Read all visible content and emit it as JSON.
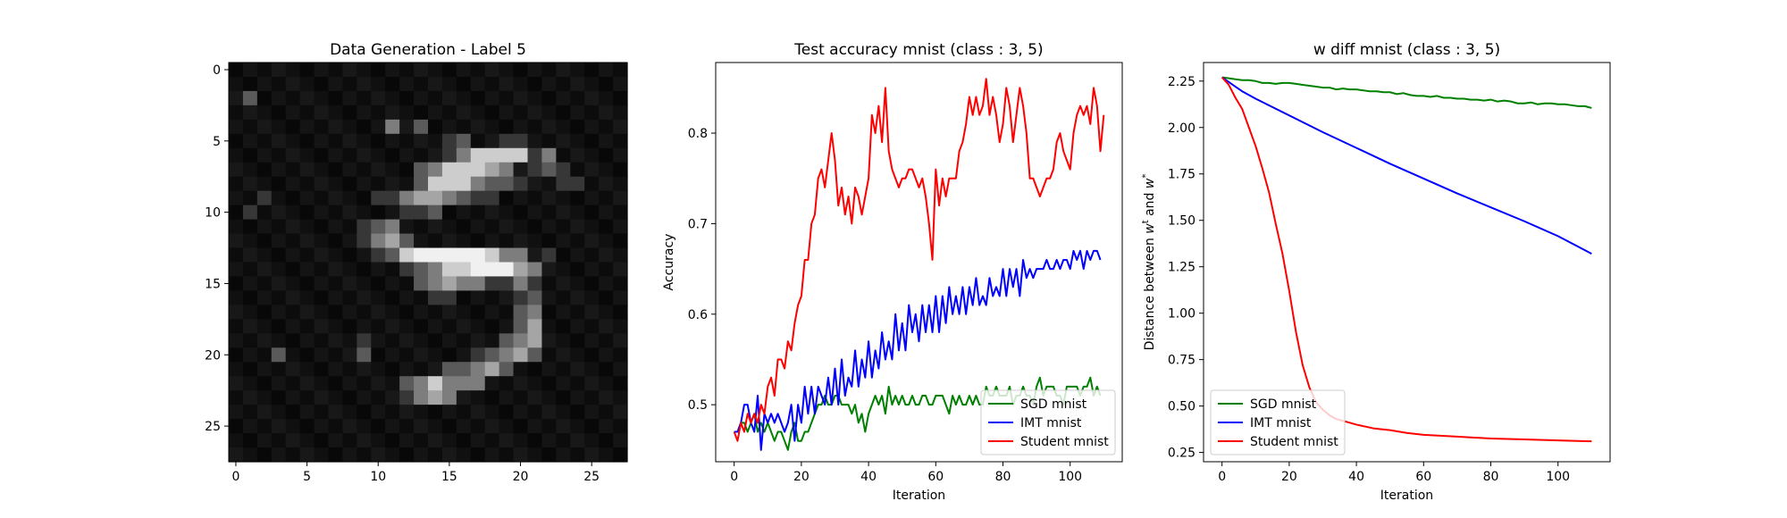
{
  "chart_data": [
    {
      "type": "heatmap",
      "title": "Data Generation - Label 5",
      "colormap": "gray",
      "xlim": [
        -0.5,
        27.5
      ],
      "ylim": [
        27.5,
        -0.5
      ],
      "xticks": [
        0,
        5,
        10,
        15,
        20,
        25
      ],
      "yticks": [
        0,
        5,
        10,
        15,
        20,
        25
      ],
      "grid": false,
      "rows": [
        "0000000000000000000000000000",
        "0000000000000000000000000000",
        "0200000000000000000000000000",
        "0000000000000000000000000000",
        "0000000000030200000000000000",
        "0000000000000001200110000000",
        "0000000000000001355551300000",
        "0000000000000235554301210000",
        "0000000000000255532210011000",
        "0010000000113443211000000000",
        "0100000000001120000000000000",
        "0000000001230000000000000000",
        "0000000001342000000000000000",
        "0000000000125666765330100000",
        "0000000000001235566643000000",
        "0000000000000234331131000000",
        "0000000000000011000012000000",
        "0000000000000000000023000000",
        "0000000000000000000024000000",
        "0000000001000000000234000000",
        "0002000002000000012342000000",
        "0000000000000002234200000000",
        "0000000000002353330000000000",
        "0000000000001343000000000000",
        "0000000000000000000000000000",
        "0000000000000000000000000000",
        "0000000000000000000000000000",
        "0000000000000000000000000000"
      ]
    },
    {
      "type": "line",
      "title": "Test accuracy mnist (class : 3, 5)",
      "xlabel": "Iteration",
      "ylabel": "Accuracy",
      "xlim": [
        -5.5,
        115.5
      ],
      "ylim": [
        0.437,
        0.878
      ],
      "xticks": [
        0,
        20,
        40,
        60,
        80,
        100
      ],
      "yticks": [
        0.5,
        0.6,
        0.7,
        0.8
      ],
      "legend_position": "lower-right",
      "grid": false,
      "series": [
        {
          "name": "SGD mnist",
          "color": "#008000",
          "x_start": 0,
          "values": [
            0.47,
            0.47,
            0.48,
            0.48,
            0.47,
            0.48,
            0.49,
            0.47,
            0.48,
            0.47,
            0.48,
            0.47,
            0.46,
            0.47,
            0.47,
            0.46,
            0.45,
            0.47,
            0.48,
            0.46,
            0.46,
            0.47,
            0.47,
            0.48,
            0.49,
            0.5,
            0.5,
            0.51,
            0.5,
            0.5,
            0.51,
            0.51,
            0.5,
            0.5,
            0.5,
            0.49,
            0.5,
            0.48,
            0.49,
            0.47,
            0.49,
            0.5,
            0.51,
            0.5,
            0.51,
            0.49,
            0.52,
            0.5,
            0.51,
            0.5,
            0.51,
            0.5,
            0.5,
            0.51,
            0.5,
            0.5,
            0.51,
            0.51,
            0.5,
            0.5,
            0.51,
            0.51,
            0.51,
            0.5,
            0.49,
            0.51,
            0.5,
            0.51,
            0.5,
            0.5,
            0.51,
            0.5,
            0.51,
            0.5,
            0.5,
            0.52,
            0.51,
            0.51,
            0.52,
            0.51,
            0.51,
            0.51,
            0.52,
            0.5,
            0.51,
            0.51,
            0.52,
            0.51,
            0.51,
            0.5,
            0.52,
            0.53,
            0.51,
            0.52,
            0.52,
            0.52,
            0.51,
            0.51,
            0.5,
            0.52,
            0.52,
            0.52,
            0.52,
            0.51,
            0.52,
            0.52,
            0.53,
            0.51,
            0.52,
            0.51
          ]
        },
        {
          "name": "IMT mnist",
          "color": "#0000ff",
          "x_start": 0,
          "values": [
            0.47,
            0.47,
            0.48,
            0.5,
            0.5,
            0.48,
            0.47,
            0.51,
            0.45,
            0.49,
            0.48,
            0.49,
            0.48,
            0.49,
            0.48,
            0.47,
            0.48,
            0.5,
            0.46,
            0.5,
            0.48,
            0.52,
            0.49,
            0.52,
            0.49,
            0.52,
            0.51,
            0.5,
            0.53,
            0.5,
            0.54,
            0.5,
            0.55,
            0.51,
            0.53,
            0.52,
            0.56,
            0.52,
            0.55,
            0.53,
            0.57,
            0.53,
            0.56,
            0.54,
            0.58,
            0.55,
            0.57,
            0.55,
            0.6,
            0.56,
            0.59,
            0.56,
            0.61,
            0.58,
            0.6,
            0.57,
            0.61,
            0.58,
            0.61,
            0.58,
            0.62,
            0.58,
            0.62,
            0.59,
            0.63,
            0.6,
            0.62,
            0.6,
            0.63,
            0.6,
            0.63,
            0.61,
            0.64,
            0.61,
            0.62,
            0.61,
            0.64,
            0.62,
            0.63,
            0.62,
            0.65,
            0.62,
            0.65,
            0.63,
            0.65,
            0.62,
            0.66,
            0.64,
            0.65,
            0.64,
            0.65,
            0.65,
            0.65,
            0.66,
            0.65,
            0.65,
            0.66,
            0.65,
            0.66,
            0.66,
            0.65,
            0.67,
            0.66,
            0.67,
            0.65,
            0.67,
            0.66,
            0.67,
            0.67,
            0.66
          ]
        },
        {
          "name": "Student mnist",
          "color": "#ff0000",
          "x_start": 0,
          "values": [
            0.47,
            0.46,
            0.48,
            0.47,
            0.49,
            0.48,
            0.49,
            0.48,
            0.5,
            0.49,
            0.52,
            0.53,
            0.51,
            0.55,
            0.55,
            0.54,
            0.57,
            0.56,
            0.59,
            0.61,
            0.62,
            0.66,
            0.66,
            0.7,
            0.71,
            0.75,
            0.76,
            0.74,
            0.77,
            0.8,
            0.77,
            0.72,
            0.74,
            0.71,
            0.73,
            0.7,
            0.74,
            0.73,
            0.71,
            0.73,
            0.75,
            0.82,
            0.8,
            0.83,
            0.79,
            0.85,
            0.78,
            0.76,
            0.75,
            0.74,
            0.75,
            0.75,
            0.76,
            0.76,
            0.75,
            0.74,
            0.75,
            0.73,
            0.7,
            0.66,
            0.76,
            0.72,
            0.75,
            0.73,
            0.75,
            0.75,
            0.75,
            0.78,
            0.79,
            0.81,
            0.84,
            0.82,
            0.84,
            0.82,
            0.83,
            0.86,
            0.82,
            0.84,
            0.82,
            0.79,
            0.81,
            0.85,
            0.83,
            0.79,
            0.82,
            0.85,
            0.83,
            0.8,
            0.75,
            0.75,
            0.74,
            0.73,
            0.74,
            0.75,
            0.75,
            0.76,
            0.79,
            0.8,
            0.78,
            0.77,
            0.76,
            0.8,
            0.82,
            0.83,
            0.82,
            0.83,
            0.81,
            0.85,
            0.83,
            0.78,
            0.82
          ]
        }
      ]
    },
    {
      "type": "line",
      "title": "w diff mnist (class : 3, 5)",
      "xlabel": "Iteration",
      "ylabel": "Distance between w^t and w^*",
      "ylabel_parts": [
        "Distance between ",
        "w",
        "t",
        " and ",
        "w",
        "*"
      ],
      "xlim": [
        -5.5,
        115.5
      ],
      "ylim": [
        0.2,
        2.35
      ],
      "xticks": [
        0,
        20,
        40,
        60,
        80,
        100
      ],
      "yticks": [
        0.25,
        0.5,
        0.75,
        1.0,
        1.25,
        1.5,
        1.75,
        2.0,
        2.25
      ],
      "legend_position": "lower-left",
      "grid": false,
      "series": [
        {
          "name": "SGD mnist",
          "color": "#008000",
          "x": [
            0,
            2,
            4,
            6,
            8,
            10,
            12,
            14,
            16,
            18,
            20,
            22,
            24,
            26,
            28,
            30,
            32,
            34,
            36,
            38,
            40,
            42,
            44,
            46,
            48,
            50,
            52,
            54,
            56,
            58,
            60,
            62,
            64,
            66,
            68,
            70,
            72,
            74,
            76,
            78,
            80,
            82,
            84,
            86,
            88,
            90,
            92,
            94,
            96,
            98,
            100,
            102,
            104,
            106,
            108,
            110
          ],
          "values": [
            2.27,
            2.265,
            2.26,
            2.255,
            2.255,
            2.25,
            2.24,
            2.24,
            2.235,
            2.24,
            2.24,
            2.235,
            2.23,
            2.225,
            2.22,
            2.215,
            2.215,
            2.205,
            2.21,
            2.205,
            2.205,
            2.2,
            2.195,
            2.195,
            2.19,
            2.19,
            2.18,
            2.185,
            2.175,
            2.17,
            2.17,
            2.165,
            2.17,
            2.16,
            2.16,
            2.155,
            2.155,
            2.15,
            2.15,
            2.145,
            2.15,
            2.14,
            2.145,
            2.14,
            2.13,
            2.13,
            2.135,
            2.125,
            2.13,
            2.13,
            2.125,
            2.125,
            2.12,
            2.115,
            2.115,
            2.105
          ]
        },
        {
          "name": "IMT mnist",
          "color": "#0000ff",
          "x": [
            0,
            2,
            4,
            6,
            8,
            10,
            15,
            20,
            25,
            30,
            40,
            50,
            60,
            70,
            80,
            90,
            100,
            110
          ],
          "values": [
            2.27,
            2.245,
            2.22,
            2.195,
            2.175,
            2.155,
            2.11,
            2.065,
            2.02,
            1.975,
            1.89,
            1.805,
            1.725,
            1.645,
            1.57,
            1.495,
            1.415,
            1.32
          ]
        },
        {
          "name": "Student mnist",
          "color": "#ff0000",
          "x": [
            0,
            2,
            4,
            6,
            8,
            10,
            12,
            14,
            16,
            18,
            20,
            22,
            24,
            26,
            28,
            30,
            32,
            34,
            36,
            38,
            40,
            45,
            50,
            55,
            60,
            70,
            80,
            90,
            100,
            110
          ],
          "values": [
            2.27,
            2.23,
            2.16,
            2.1,
            2.0,
            1.9,
            1.78,
            1.65,
            1.48,
            1.32,
            1.12,
            0.9,
            0.72,
            0.6,
            0.52,
            0.48,
            0.45,
            0.43,
            0.42,
            0.41,
            0.4,
            0.38,
            0.37,
            0.355,
            0.345,
            0.335,
            0.325,
            0.32,
            0.315,
            0.31
          ]
        }
      ]
    }
  ]
}
